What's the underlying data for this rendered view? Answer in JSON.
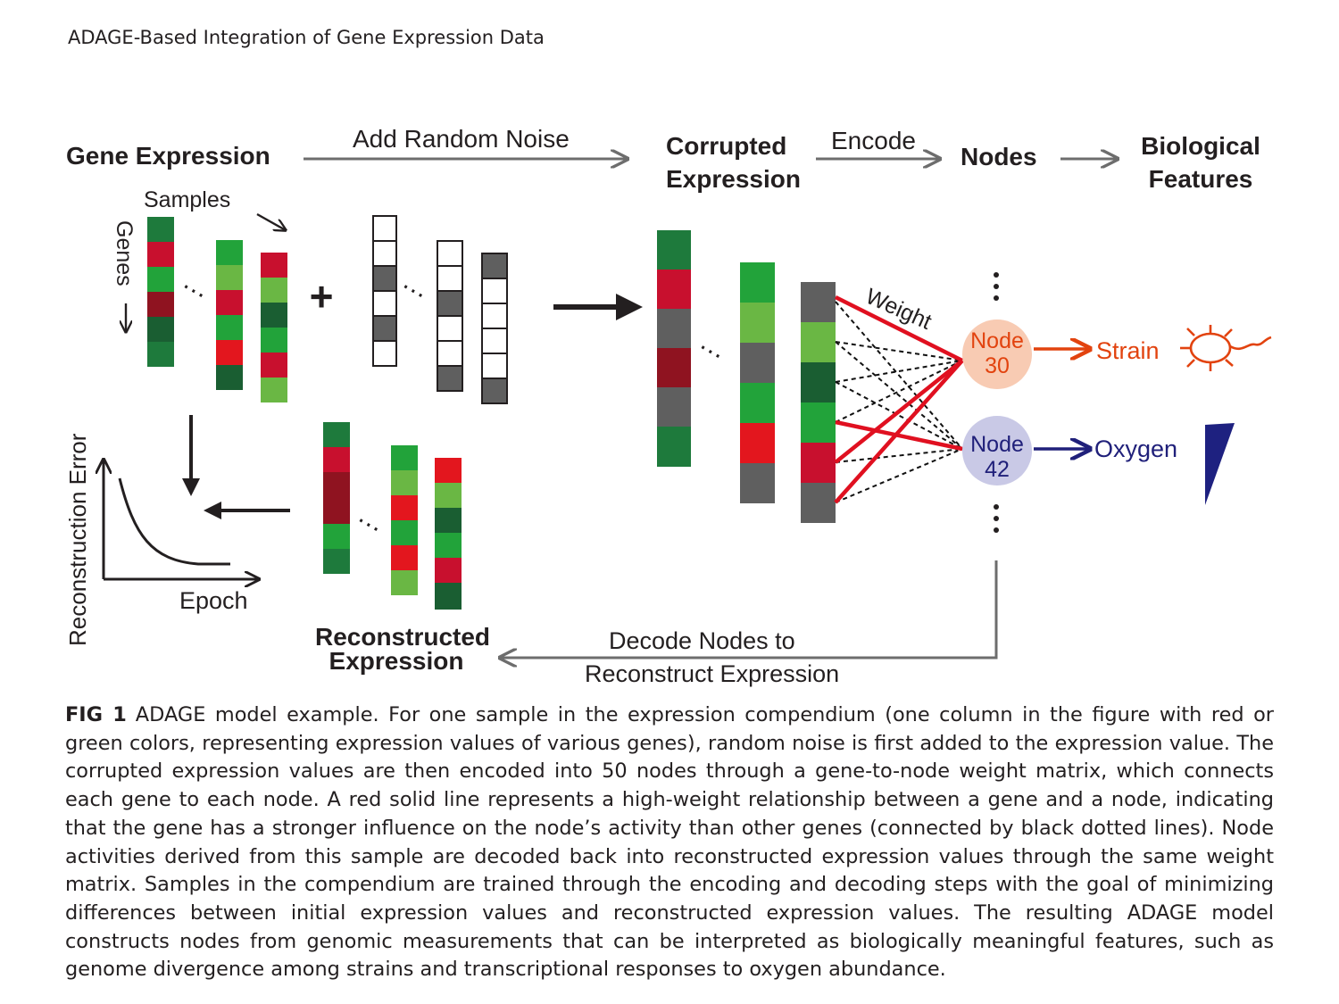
{
  "header": {
    "running_title": "ADAGE-Based Integration of Gene Expression Data"
  },
  "colors": {
    "dark_green": "#1e7a3c",
    "green": "#22a33a",
    "light_green": "#6ab744",
    "deep_green": "#1a5e32",
    "red": "#c8102e",
    "bright_red": "#e3161e",
    "dark_red": "#8f1320",
    "gray": "#5f5f5f",
    "text": "#231f20",
    "arrow_gray": "#6d6d6d",
    "strong_edge": "#e01020",
    "weak_edge": "#111111",
    "node30_fill": "#f8cbb3",
    "node30_text": "#e2430f",
    "node42_fill": "#c9c9e6",
    "node42_text": "#20207a"
  },
  "diagram": {
    "gene_expression": "Gene Expression",
    "add_random_noise": "Add Random Noise",
    "corrupted_line1": "Corrupted",
    "corrupted_line2": "Expression",
    "encode": "Encode",
    "nodes": "Nodes",
    "bio_line1": "Biological",
    "bio_line2": "Features",
    "samples": "Samples",
    "genes": "Genes",
    "weight": "Weight",
    "node30_line1": "Node",
    "node30_line2": "30",
    "node42_line1": "Node",
    "node42_line2": "42",
    "strain": "Strain",
    "oxygen": "Oxygen",
    "reconstruction_error": "Reconstruction Error",
    "epoch": "Epoch",
    "reconstructed_line1": "Reconstructed",
    "reconstructed_line2": "Expression",
    "decode_line1": "Decode Nodes to",
    "decode_line2": "Reconstruct Expression",
    "plus": "+",
    "ellipsis": "…"
  },
  "caption": {
    "label": "FIG 1",
    "text": "ADAGE model example. For one sample in the expression compendium (one column in the figure with red or green colors, representing expression values of various genes), random noise is first added to the expression value. The corrupted expression values are then encoded into 50 nodes through a gene-to-node weight matrix, which connects each gene to each node. A red solid line represents a high-weight relationship between a gene and a node, indicating that the gene has a stronger influence on the node’s activity than other genes (connected by black dotted lines). Node activities derived from this sample are decoded back into reconstructed expression values through the same weight matrix. Samples in the compendium are trained through the encoding and decoding steps with the goal of minimizing differences between initial expression values and reconstructed expression values. The resulting ADAGE model constructs nodes from genomic measurements that can be interpreted as biologically meaningful features, such as genome divergence among strains and transcriptional responses to oxygen abundance."
  }
}
